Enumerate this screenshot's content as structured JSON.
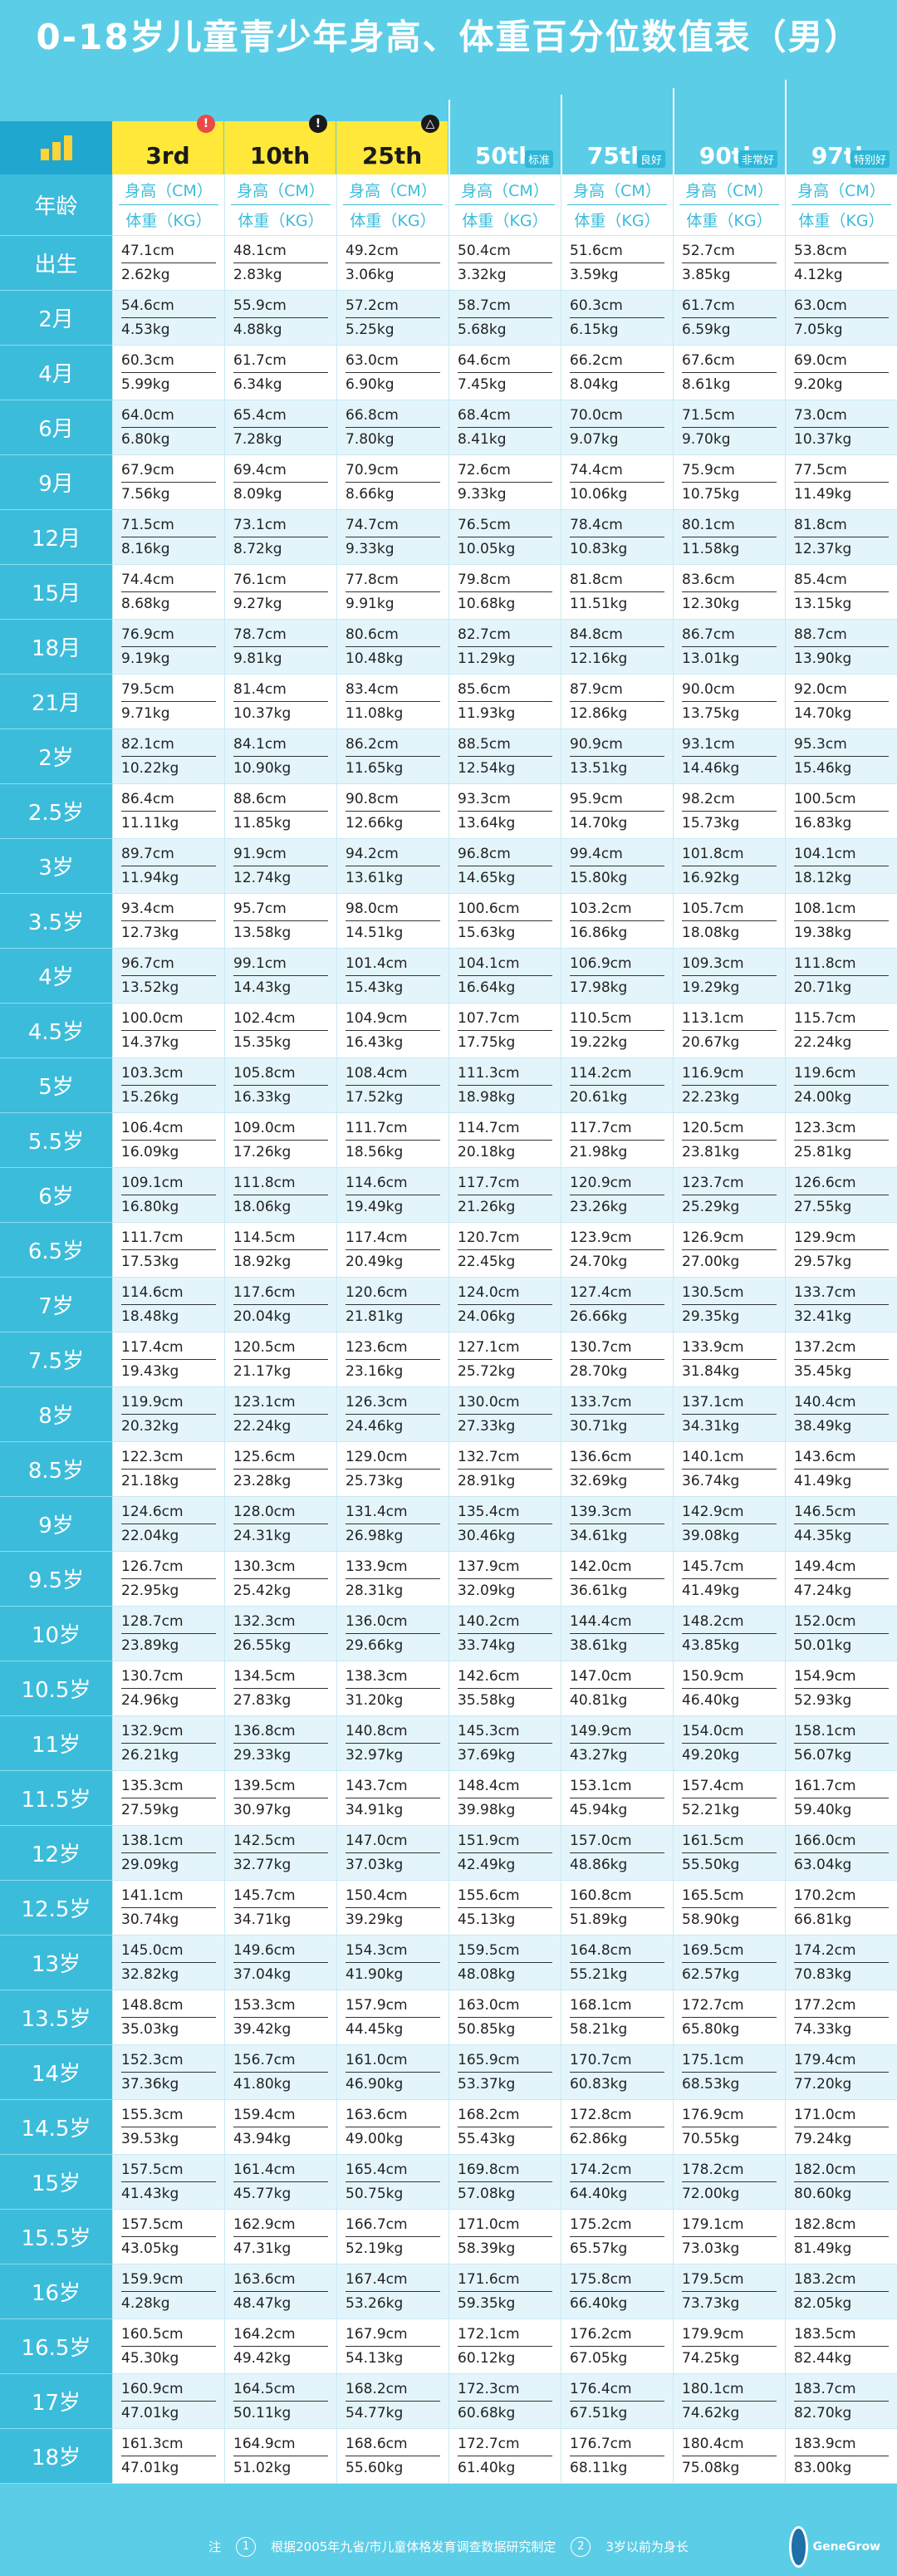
{
  "title": "0-18岁儿童青少年身高、体重百分位数值表（男）",
  "percentiles": [
    {
      "label": "3rd",
      "tag": "",
      "badge": "!",
      "badge_color": "red"
    },
    {
      "label": "10th",
      "tag": "",
      "badge": "!",
      "badge_color": "black"
    },
    {
      "label": "25th",
      "tag": "",
      "badge": "△",
      "badge_color": "black"
    },
    {
      "label": "50th",
      "tag": "标准",
      "badge": "",
      "badge_color": ""
    },
    {
      "label": "75th",
      "tag": "良好",
      "badge": "",
      "badge_color": ""
    },
    {
      "label": "90th",
      "tag": "非常好",
      "badge": "",
      "badge_color": ""
    },
    {
      "label": "97th",
      "tag": "特别好",
      "badge": "",
      "badge_color": ""
    }
  ],
  "age_header": "年龄",
  "height_header": "身高（CM）",
  "weight_header": "体重（KG）",
  "rows": [
    {
      "age": "出生",
      "h": [
        "47.1cm",
        "48.1cm",
        "49.2cm",
        "50.4cm",
        "51.6cm",
        "52.7cm",
        "53.8cm"
      ],
      "w": [
        "2.62kg",
        "2.83kg",
        "3.06kg",
        "3.32kg",
        "3.59kg",
        "3.85kg",
        "4.12kg"
      ]
    },
    {
      "age": "2月",
      "h": [
        "54.6cm",
        "55.9cm",
        "57.2cm",
        "58.7cm",
        "60.3cm",
        "61.7cm",
        "63.0cm"
      ],
      "w": [
        "4.53kg",
        "4.88kg",
        "5.25kg",
        "5.68kg",
        "6.15kg",
        "6.59kg",
        "7.05kg"
      ]
    },
    {
      "age": "4月",
      "h": [
        "60.3cm",
        "61.7cm",
        "63.0cm",
        "64.6cm",
        "66.2cm",
        "67.6cm",
        "69.0cm"
      ],
      "w": [
        "5.99kg",
        "6.34kg",
        "6.90kg",
        "7.45kg",
        "8.04kg",
        "8.61kg",
        "9.20kg"
      ]
    },
    {
      "age": "6月",
      "h": [
        "64.0cm",
        "65.4cm",
        "66.8cm",
        "68.4cm",
        "70.0cm",
        "71.5cm",
        "73.0cm"
      ],
      "w": [
        "6.80kg",
        "7.28kg",
        "7.80kg",
        "8.41kg",
        "9.07kg",
        "9.70kg",
        "10.37kg"
      ]
    },
    {
      "age": "9月",
      "h": [
        "67.9cm",
        "69.4cm",
        "70.9cm",
        "72.6cm",
        "74.4cm",
        "75.9cm",
        "77.5cm"
      ],
      "w": [
        "7.56kg",
        "8.09kg",
        "8.66kg",
        "9.33kg",
        "10.06kg",
        "10.75kg",
        "11.49kg"
      ]
    },
    {
      "age": "12月",
      "h": [
        "71.5cm",
        "73.1cm",
        "74.7cm",
        "76.5cm",
        "78.4cm",
        "80.1cm",
        "81.8cm"
      ],
      "w": [
        "8.16kg",
        "8.72kg",
        "9.33kg",
        "10.05kg",
        "10.83kg",
        "11.58kg",
        "12.37kg"
      ]
    },
    {
      "age": "15月",
      "h": [
        "74.4cm",
        "76.1cm",
        "77.8cm",
        "79.8cm",
        "81.8cm",
        "83.6cm",
        "85.4cm"
      ],
      "w": [
        "8.68kg",
        "9.27kg",
        "9.91kg",
        "10.68kg",
        "11.51kg",
        "12.30kg",
        "13.15kg"
      ]
    },
    {
      "age": "18月",
      "h": [
        "76.9cm",
        "78.7cm",
        "80.6cm",
        "82.7cm",
        "84.8cm",
        "86.7cm",
        "88.7cm"
      ],
      "w": [
        "9.19kg",
        "9.81kg",
        "10.48kg",
        "11.29kg",
        "12.16kg",
        "13.01kg",
        "13.90kg"
      ]
    },
    {
      "age": "21月",
      "h": [
        "79.5cm",
        "81.4cm",
        "83.4cm",
        "85.6cm",
        "87.9cm",
        "90.0cm",
        "92.0cm"
      ],
      "w": [
        "9.71kg",
        "10.37kg",
        "11.08kg",
        "11.93kg",
        "12.86kg",
        "13.75kg",
        "14.70kg"
      ]
    },
    {
      "age": "2岁",
      "h": [
        "82.1cm",
        "84.1cm",
        "86.2cm",
        "88.5cm",
        "90.9cm",
        "93.1cm",
        "95.3cm"
      ],
      "w": [
        "10.22kg",
        "10.90kg",
        "11.65kg",
        "12.54kg",
        "13.51kg",
        "14.46kg",
        "15.46kg"
      ]
    },
    {
      "age": "2.5岁",
      "h": [
        "86.4cm",
        "88.6cm",
        "90.8cm",
        "93.3cm",
        "95.9cm",
        "98.2cm",
        "100.5cm"
      ],
      "w": [
        "11.11kg",
        "11.85kg",
        "12.66kg",
        "13.64kg",
        "14.70kg",
        "15.73kg",
        "16.83kg"
      ]
    },
    {
      "age": "3岁",
      "h": [
        "89.7cm",
        "91.9cm",
        "94.2cm",
        "96.8cm",
        "99.4cm",
        "101.8cm",
        "104.1cm"
      ],
      "w": [
        "11.94kg",
        "12.74kg",
        "13.61kg",
        "14.65kg",
        "15.80kg",
        "16.92kg",
        "18.12kg"
      ]
    },
    {
      "age": "3.5岁",
      "h": [
        "93.4cm",
        "95.7cm",
        "98.0cm",
        "100.6cm",
        "103.2cm",
        "105.7cm",
        "108.1cm"
      ],
      "w": [
        "12.73kg",
        "13.58kg",
        "14.51kg",
        "15.63kg",
        "16.86kg",
        "18.08kg",
        "19.38kg"
      ]
    },
    {
      "age": "4岁",
      "h": [
        "96.7cm",
        "99.1cm",
        "101.4cm",
        "104.1cm",
        "106.9cm",
        "109.3cm",
        "111.8cm"
      ],
      "w": [
        "13.52kg",
        "14.43kg",
        "15.43kg",
        "16.64kg",
        "17.98kg",
        "19.29kg",
        "20.71kg"
      ]
    },
    {
      "age": "4.5岁",
      "h": [
        "100.0cm",
        "102.4cm",
        "104.9cm",
        "107.7cm",
        "110.5cm",
        "113.1cm",
        "115.7cm"
      ],
      "w": [
        "14.37kg",
        "15.35kg",
        "16.43kg",
        "17.75kg",
        "19.22kg",
        "20.67kg",
        "22.24kg"
      ]
    },
    {
      "age": "5岁",
      "h": [
        "103.3cm",
        "105.8cm",
        "108.4cm",
        "111.3cm",
        "114.2cm",
        "116.9cm",
        "119.6cm"
      ],
      "w": [
        "15.26kg",
        "16.33kg",
        "17.52kg",
        "18.98kg",
        "20.61kg",
        "22.23kg",
        "24.00kg"
      ]
    },
    {
      "age": "5.5岁",
      "h": [
        "106.4cm",
        "109.0cm",
        "111.7cm",
        "114.7cm",
        "117.7cm",
        "120.5cm",
        "123.3cm"
      ],
      "w": [
        "16.09kg",
        "17.26kg",
        "18.56kg",
        "20.18kg",
        "21.98kg",
        "23.81kg",
        "25.81kg"
      ]
    },
    {
      "age": "6岁",
      "h": [
        "109.1cm",
        "111.8cm",
        "114.6cm",
        "117.7cm",
        "120.9cm",
        "123.7cm",
        "126.6cm"
      ],
      "w": [
        "16.80kg",
        "18.06kg",
        "19.49kg",
        "21.26kg",
        "23.26kg",
        "25.29kg",
        "27.55kg"
      ]
    },
    {
      "age": "6.5岁",
      "h": [
        "111.7cm",
        "114.5cm",
        "117.4cm",
        "120.7cm",
        "123.9cm",
        "126.9cm",
        "129.9cm"
      ],
      "w": [
        "17.53kg",
        "18.92kg",
        "20.49kg",
        "22.45kg",
        "24.70kg",
        "27.00kg",
        "29.57kg"
      ]
    },
    {
      "age": "7岁",
      "h": [
        "114.6cm",
        "117.6cm",
        "120.6cm",
        "124.0cm",
        "127.4cm",
        "130.5cm",
        "133.7cm"
      ],
      "w": [
        "18.48kg",
        "20.04kg",
        "21.81kg",
        "24.06kg",
        "26.66kg",
        "29.35kg",
        "32.41kg"
      ]
    },
    {
      "age": "7.5岁",
      "h": [
        "117.4cm",
        "120.5cm",
        "123.6cm",
        "127.1cm",
        "130.7cm",
        "133.9cm",
        "137.2cm"
      ],
      "w": [
        "19.43kg",
        "21.17kg",
        "23.16kg",
        "25.72kg",
        "28.70kg",
        "31.84kg",
        "35.45kg"
      ]
    },
    {
      "age": "8岁",
      "h": [
        "119.9cm",
        "123.1cm",
        "126.3cm",
        "130.0cm",
        "133.7cm",
        "137.1cm",
        "140.4cm"
      ],
      "w": [
        "20.32kg",
        "22.24kg",
        "24.46kg",
        "27.33kg",
        "30.71kg",
        "34.31kg",
        "38.49kg"
      ]
    },
    {
      "age": "8.5岁",
      "h": [
        "122.3cm",
        "125.6cm",
        "129.0cm",
        "132.7cm",
        "136.6cm",
        "140.1cm",
        "143.6cm"
      ],
      "w": [
        "21.18kg",
        "23.28kg",
        "25.73kg",
        "28.91kg",
        "32.69kg",
        "36.74kg",
        "41.49kg"
      ]
    },
    {
      "age": "9岁",
      "h": [
        "124.6cm",
        "128.0cm",
        "131.4cm",
        "135.4cm",
        "139.3cm",
        "142.9cm",
        "146.5cm"
      ],
      "w": [
        "22.04kg",
        "24.31kg",
        "26.98kg",
        "30.46kg",
        "34.61kg",
        "39.08kg",
        "44.35kg"
      ]
    },
    {
      "age": "9.5岁",
      "h": [
        "126.7cm",
        "130.3cm",
        "133.9cm",
        "137.9cm",
        "142.0cm",
        "145.7cm",
        "149.4cm"
      ],
      "w": [
        "22.95kg",
        "25.42kg",
        "28.31kg",
        "32.09kg",
        "36.61kg",
        "41.49kg",
        "47.24kg"
      ]
    },
    {
      "age": "10岁",
      "h": [
        "128.7cm",
        "132.3cm",
        "136.0cm",
        "140.2cm",
        "144.4cm",
        "148.2cm",
        "152.0cm"
      ],
      "w": [
        "23.89kg",
        "26.55kg",
        "29.66kg",
        "33.74kg",
        "38.61kg",
        "43.85kg",
        "50.01kg"
      ]
    },
    {
      "age": "10.5岁",
      "h": [
        "130.7cm",
        "134.5cm",
        "138.3cm",
        "142.6cm",
        "147.0cm",
        "150.9cm",
        "154.9cm"
      ],
      "w": [
        "24.96kg",
        "27.83kg",
        "31.20kg",
        "35.58kg",
        "40.81kg",
        "46.40kg",
        "52.93kg"
      ]
    },
    {
      "age": "11岁",
      "h": [
        "132.9cm",
        "136.8cm",
        "140.8cm",
        "145.3cm",
        "149.9cm",
        "154.0cm",
        "158.1cm"
      ],
      "w": [
        "26.21kg",
        "29.33kg",
        "32.97kg",
        "37.69kg",
        "43.27kg",
        "49.20kg",
        "56.07kg"
      ]
    },
    {
      "age": "11.5岁",
      "h": [
        "135.3cm",
        "139.5cm",
        "143.7cm",
        "148.4cm",
        "153.1cm",
        "157.4cm",
        "161.7cm"
      ],
      "w": [
        "27.59kg",
        "30.97kg",
        "34.91kg",
        "39.98kg",
        "45.94kg",
        "52.21kg",
        "59.40kg"
      ]
    },
    {
      "age": "12岁",
      "h": [
        "138.1cm",
        "142.5cm",
        "147.0cm",
        "151.9cm",
        "157.0cm",
        "161.5cm",
        "166.0cm"
      ],
      "w": [
        "29.09kg",
        "32.77kg",
        "37.03kg",
        "42.49kg",
        "48.86kg",
        "55.50kg",
        "63.04kg"
      ]
    },
    {
      "age": "12.5岁",
      "h": [
        "141.1cm",
        "145.7cm",
        "150.4cm",
        "155.6cm",
        "160.8cm",
        "165.5cm",
        "170.2cm"
      ],
      "w": [
        "30.74kg",
        "34.71kg",
        "39.29kg",
        "45.13kg",
        "51.89kg",
        "58.90kg",
        "66.81kg"
      ]
    },
    {
      "age": "13岁",
      "h": [
        "145.0cm",
        "149.6cm",
        "154.3cm",
        "159.5cm",
        "164.8cm",
        "169.5cm",
        "174.2cm"
      ],
      "w": [
        "32.82kg",
        "37.04kg",
        "41.90kg",
        "48.08kg",
        "55.21kg",
        "62.57kg",
        "70.83kg"
      ]
    },
    {
      "age": "13.5岁",
      "h": [
        "148.8cm",
        "153.3cm",
        "157.9cm",
        "163.0cm",
        "168.1cm",
        "172.7cm",
        "177.2cm"
      ],
      "w": [
        "35.03kg",
        "39.42kg",
        "44.45kg",
        "50.85kg",
        "58.21kg",
        "65.80kg",
        "74.33kg"
      ]
    },
    {
      "age": "14岁",
      "h": [
        "152.3cm",
        "156.7cm",
        "161.0cm",
        "165.9cm",
        "170.7cm",
        "175.1cm",
        "179.4cm"
      ],
      "w": [
        "37.36kg",
        "41.80kg",
        "46.90kg",
        "53.37kg",
        "60.83kg",
        "68.53kg",
        "77.20kg"
      ]
    },
    {
      "age": "14.5岁",
      "h": [
        "155.3cm",
        "159.4cm",
        "163.6cm",
        "168.2cm",
        "172.8cm",
        "176.9cm",
        "171.0cm"
      ],
      "w": [
        "39.53kg",
        "43.94kg",
        "49.00kg",
        "55.43kg",
        "62.86kg",
        "70.55kg",
        "79.24kg"
      ]
    },
    {
      "age": "15岁",
      "h": [
        "157.5cm",
        "161.4cm",
        "165.4cm",
        "169.8cm",
        "174.2cm",
        "178.2cm",
        "182.0cm"
      ],
      "w": [
        "41.43kg",
        "45.77kg",
        "50.75kg",
        "57.08kg",
        "64.40kg",
        "72.00kg",
        "80.60kg"
      ]
    },
    {
      "age": "15.5岁",
      "h": [
        "157.5cm",
        "162.9cm",
        "166.7cm",
        "171.0cm",
        "175.2cm",
        "179.1cm",
        "182.8cm"
      ],
      "w": [
        "43.05kg",
        "47.31kg",
        "52.19kg",
        "58.39kg",
        "65.57kg",
        "73.03kg",
        "81.49kg"
      ]
    },
    {
      "age": "16岁",
      "h": [
        "159.9cm",
        "163.6cm",
        "167.4cm",
        "171.6cm",
        "175.8cm",
        "179.5cm",
        "183.2cm"
      ],
      "w": [
        "4.28kg",
        "48.47kg",
        "53.26kg",
        "59.35kg",
        "66.40kg",
        "73.73kg",
        "82.05kg"
      ]
    },
    {
      "age": "16.5岁",
      "h": [
        "160.5cm",
        "164.2cm",
        "167.9cm",
        "172.1cm",
        "176.2cm",
        "179.9cm",
        "183.5cm"
      ],
      "w": [
        "45.30kg",
        "49.42kg",
        "54.13kg",
        "60.12kg",
        "67.05kg",
        "74.25kg",
        "82.44kg"
      ]
    },
    {
      "age": "17岁",
      "h": [
        "160.9cm",
        "164.5cm",
        "168.2cm",
        "172.3cm",
        "176.4cm",
        "180.1cm",
        "183.7cm"
      ],
      "w": [
        "47.01kg",
        "50.11kg",
        "54.77kg",
        "60.68kg",
        "67.51kg",
        "74.62kg",
        "82.70kg"
      ]
    },
    {
      "age": "18岁",
      "h": [
        "161.3cm",
        "164.9cm",
        "168.6cm",
        "172.7cm",
        "176.7cm",
        "180.4cm",
        "183.9cm"
      ],
      "w": [
        "47.01kg",
        "51.02kg",
        "55.60kg",
        "61.40kg",
        "68.11kg",
        "75.08kg",
        "83.00kg"
      ]
    }
  ],
  "footer": {
    "note_label": "注",
    "note1_num": "1",
    "note1": "根据2005年九省/市儿童体格发育调查数据研究制定",
    "note2_num": "2",
    "note2": "3岁以前为身长",
    "logo_text": "GeneGrow"
  }
}
